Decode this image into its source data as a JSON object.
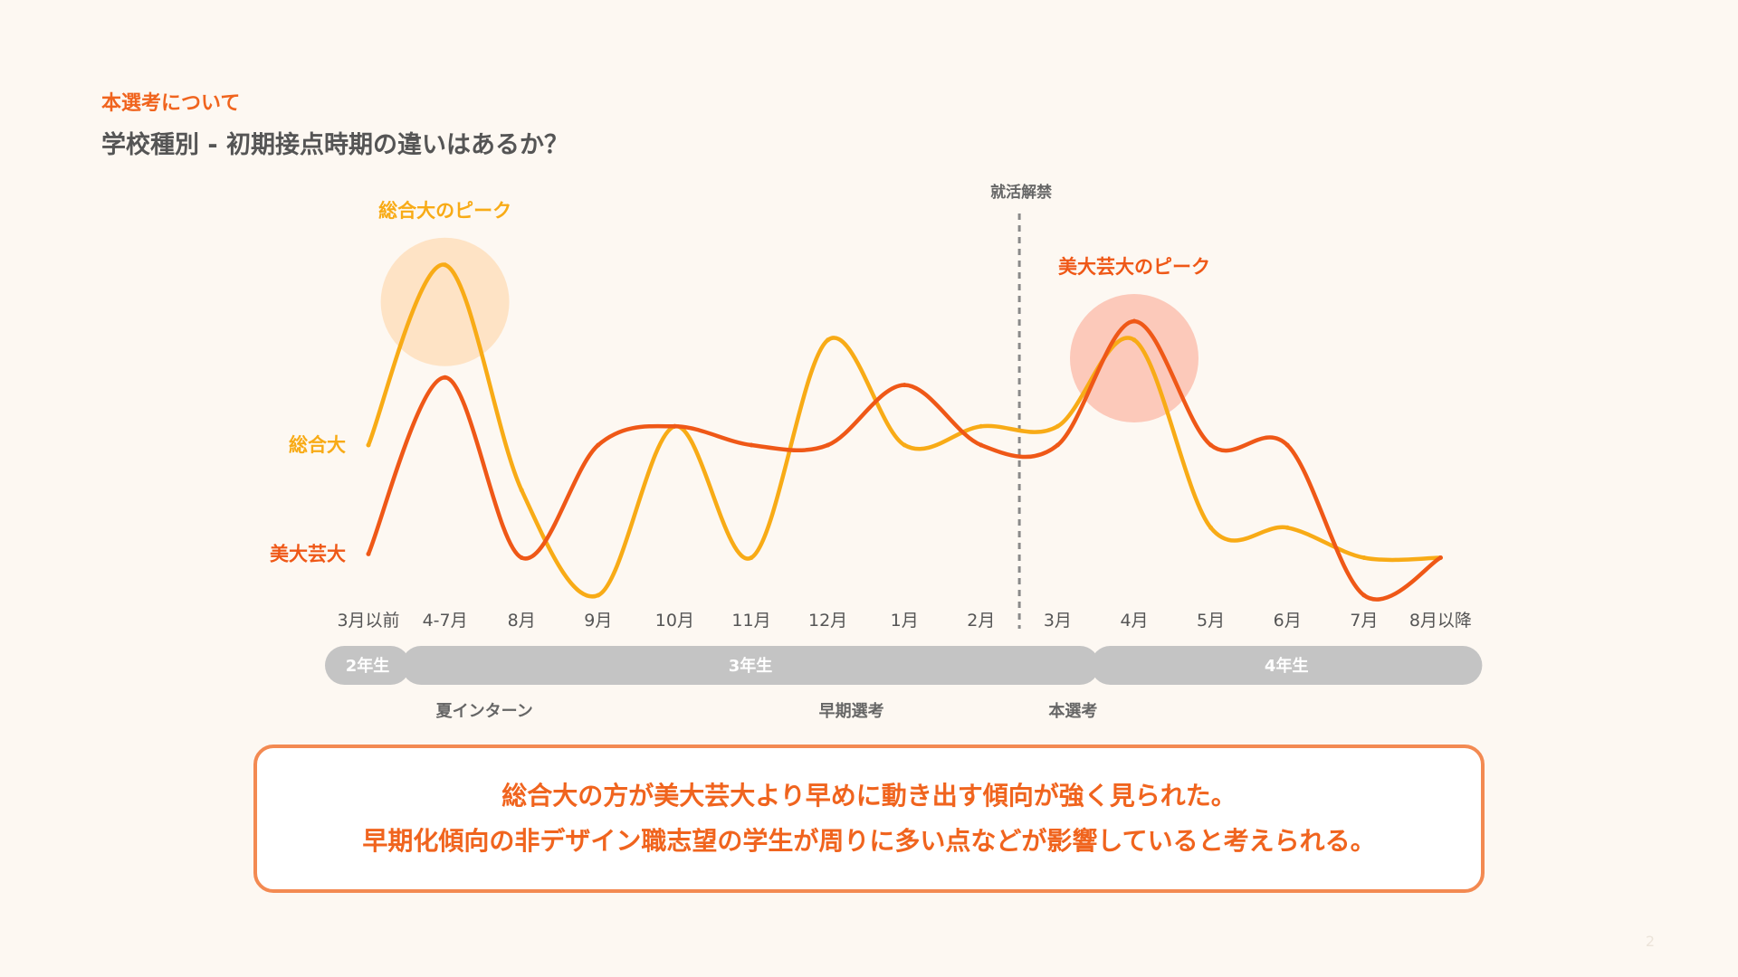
{
  "header": {
    "section_label": "本選考について",
    "title": "学校種別 - 初期接点時期の違いはあるか？"
  },
  "chart_data": {
    "type": "line",
    "title": "",
    "xlabel": "",
    "ylabel": "",
    "categories": [
      "3月以前",
      "4-7月",
      "8月",
      "9月",
      "10月",
      "11月",
      "12月",
      "1月",
      "2月",
      "3月",
      "4月",
      "5月",
      "6月",
      "7月",
      "8月以降"
    ],
    "series": [
      {
        "name": "総合大",
        "color": "#f8ab16",
        "values": [
          4.0,
          8.8,
          2.8,
          0.0,
          4.5,
          1.0,
          6.8,
          4.0,
          4.5,
          4.5,
          6.8,
          1.8,
          1.8,
          1.0,
          1.0
        ]
      },
      {
        "name": "美大芸大",
        "color": "#ef5817",
        "values": [
          1.1,
          5.8,
          1.0,
          4.0,
          4.5,
          4.0,
          4.0,
          5.6,
          4.0,
          4.0,
          7.3,
          4.0,
          4.0,
          0.0,
          1.0
        ]
      }
    ],
    "ylim": [
      0,
      10
    ],
    "grid": false,
    "legend": "left-inline",
    "event_marker": {
      "label": "就活解禁",
      "between": [
        "2月",
        "3月"
      ]
    },
    "annotations": [
      {
        "label": "総合大のピーク",
        "series": "総合大",
        "category": "4-7月",
        "color": "#f8ab16"
      },
      {
        "label": "美大芸大のピーク",
        "series": "美大芸大",
        "category": "4月",
        "color": "#ef5817"
      }
    ],
    "phases": [
      {
        "label": "2年生",
        "from": "3月以前",
        "to": "3月以前"
      },
      {
        "label": "3年生",
        "from": "4-7月",
        "to": "3月"
      },
      {
        "label": "4年生",
        "from": "4月",
        "to": "8月以降"
      }
    ],
    "milestones": [
      {
        "label": "夏インターン",
        "category": "4-7月"
      },
      {
        "label": "早期選考",
        "category": "12月"
      },
      {
        "label": "本選考",
        "category": "3月"
      }
    ]
  },
  "summary": {
    "line1": "総合大の方が美大芸大より早めに動き出す傾向が強く見られた。",
    "line2": "早期化傾向の非デザイン職志望の学生が周りに多い点などが影響していると考えられる。"
  },
  "page_number": "2"
}
